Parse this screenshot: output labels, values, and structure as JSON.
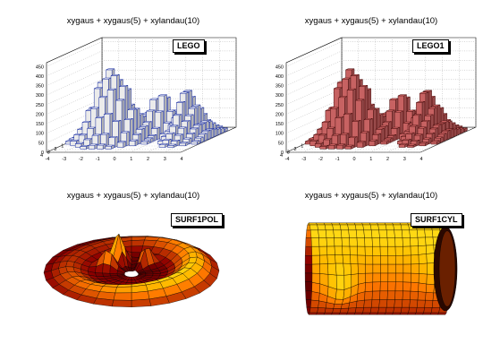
{
  "chart_data": [
    {
      "type": "lego",
      "title": "xygaus + xygaus(5) + xylandau(10)",
      "option_label": "LEGO",
      "fill": "#ffffff",
      "line": "#1a2ea0",
      "z_ticks": [
        "0",
        "50",
        "100",
        "150",
        "200",
        "250",
        "300",
        "350",
        "400",
        "450"
      ],
      "x_ticks": [
        "-4",
        "-3",
        "-2",
        "-1",
        "0",
        "1",
        "2",
        "3",
        "4"
      ],
      "y_ticks": [
        "-4",
        "-3",
        "-2",
        "-1",
        "0",
        "1",
        "2",
        "3",
        "4"
      ]
    },
    {
      "type": "lego",
      "title": "xygaus + xygaus(5) + xylandau(10)",
      "option_label": "LEGO1",
      "fill": "#d86a6a",
      "line": "#4a1010",
      "z_ticks": [
        "0",
        "50",
        "100",
        "150",
        "200",
        "250",
        "300",
        "350",
        "400",
        "450"
      ],
      "x_ticks": [
        "-4",
        "-3",
        "-2",
        "-1",
        "0",
        "1",
        "2",
        "3",
        "4"
      ],
      "y_ticks": [
        "-4",
        "-3",
        "-2",
        "-1",
        "0",
        "1",
        "2",
        "3",
        "4"
      ]
    },
    {
      "type": "surface",
      "title": "xygaus + xygaus(5) + xylandau(10)",
      "option_label": "SURF1POL"
    },
    {
      "type": "surface",
      "title": "xygaus + xygaus(5) + xylandau(10)",
      "option_label": "SURF1CYL"
    }
  ]
}
